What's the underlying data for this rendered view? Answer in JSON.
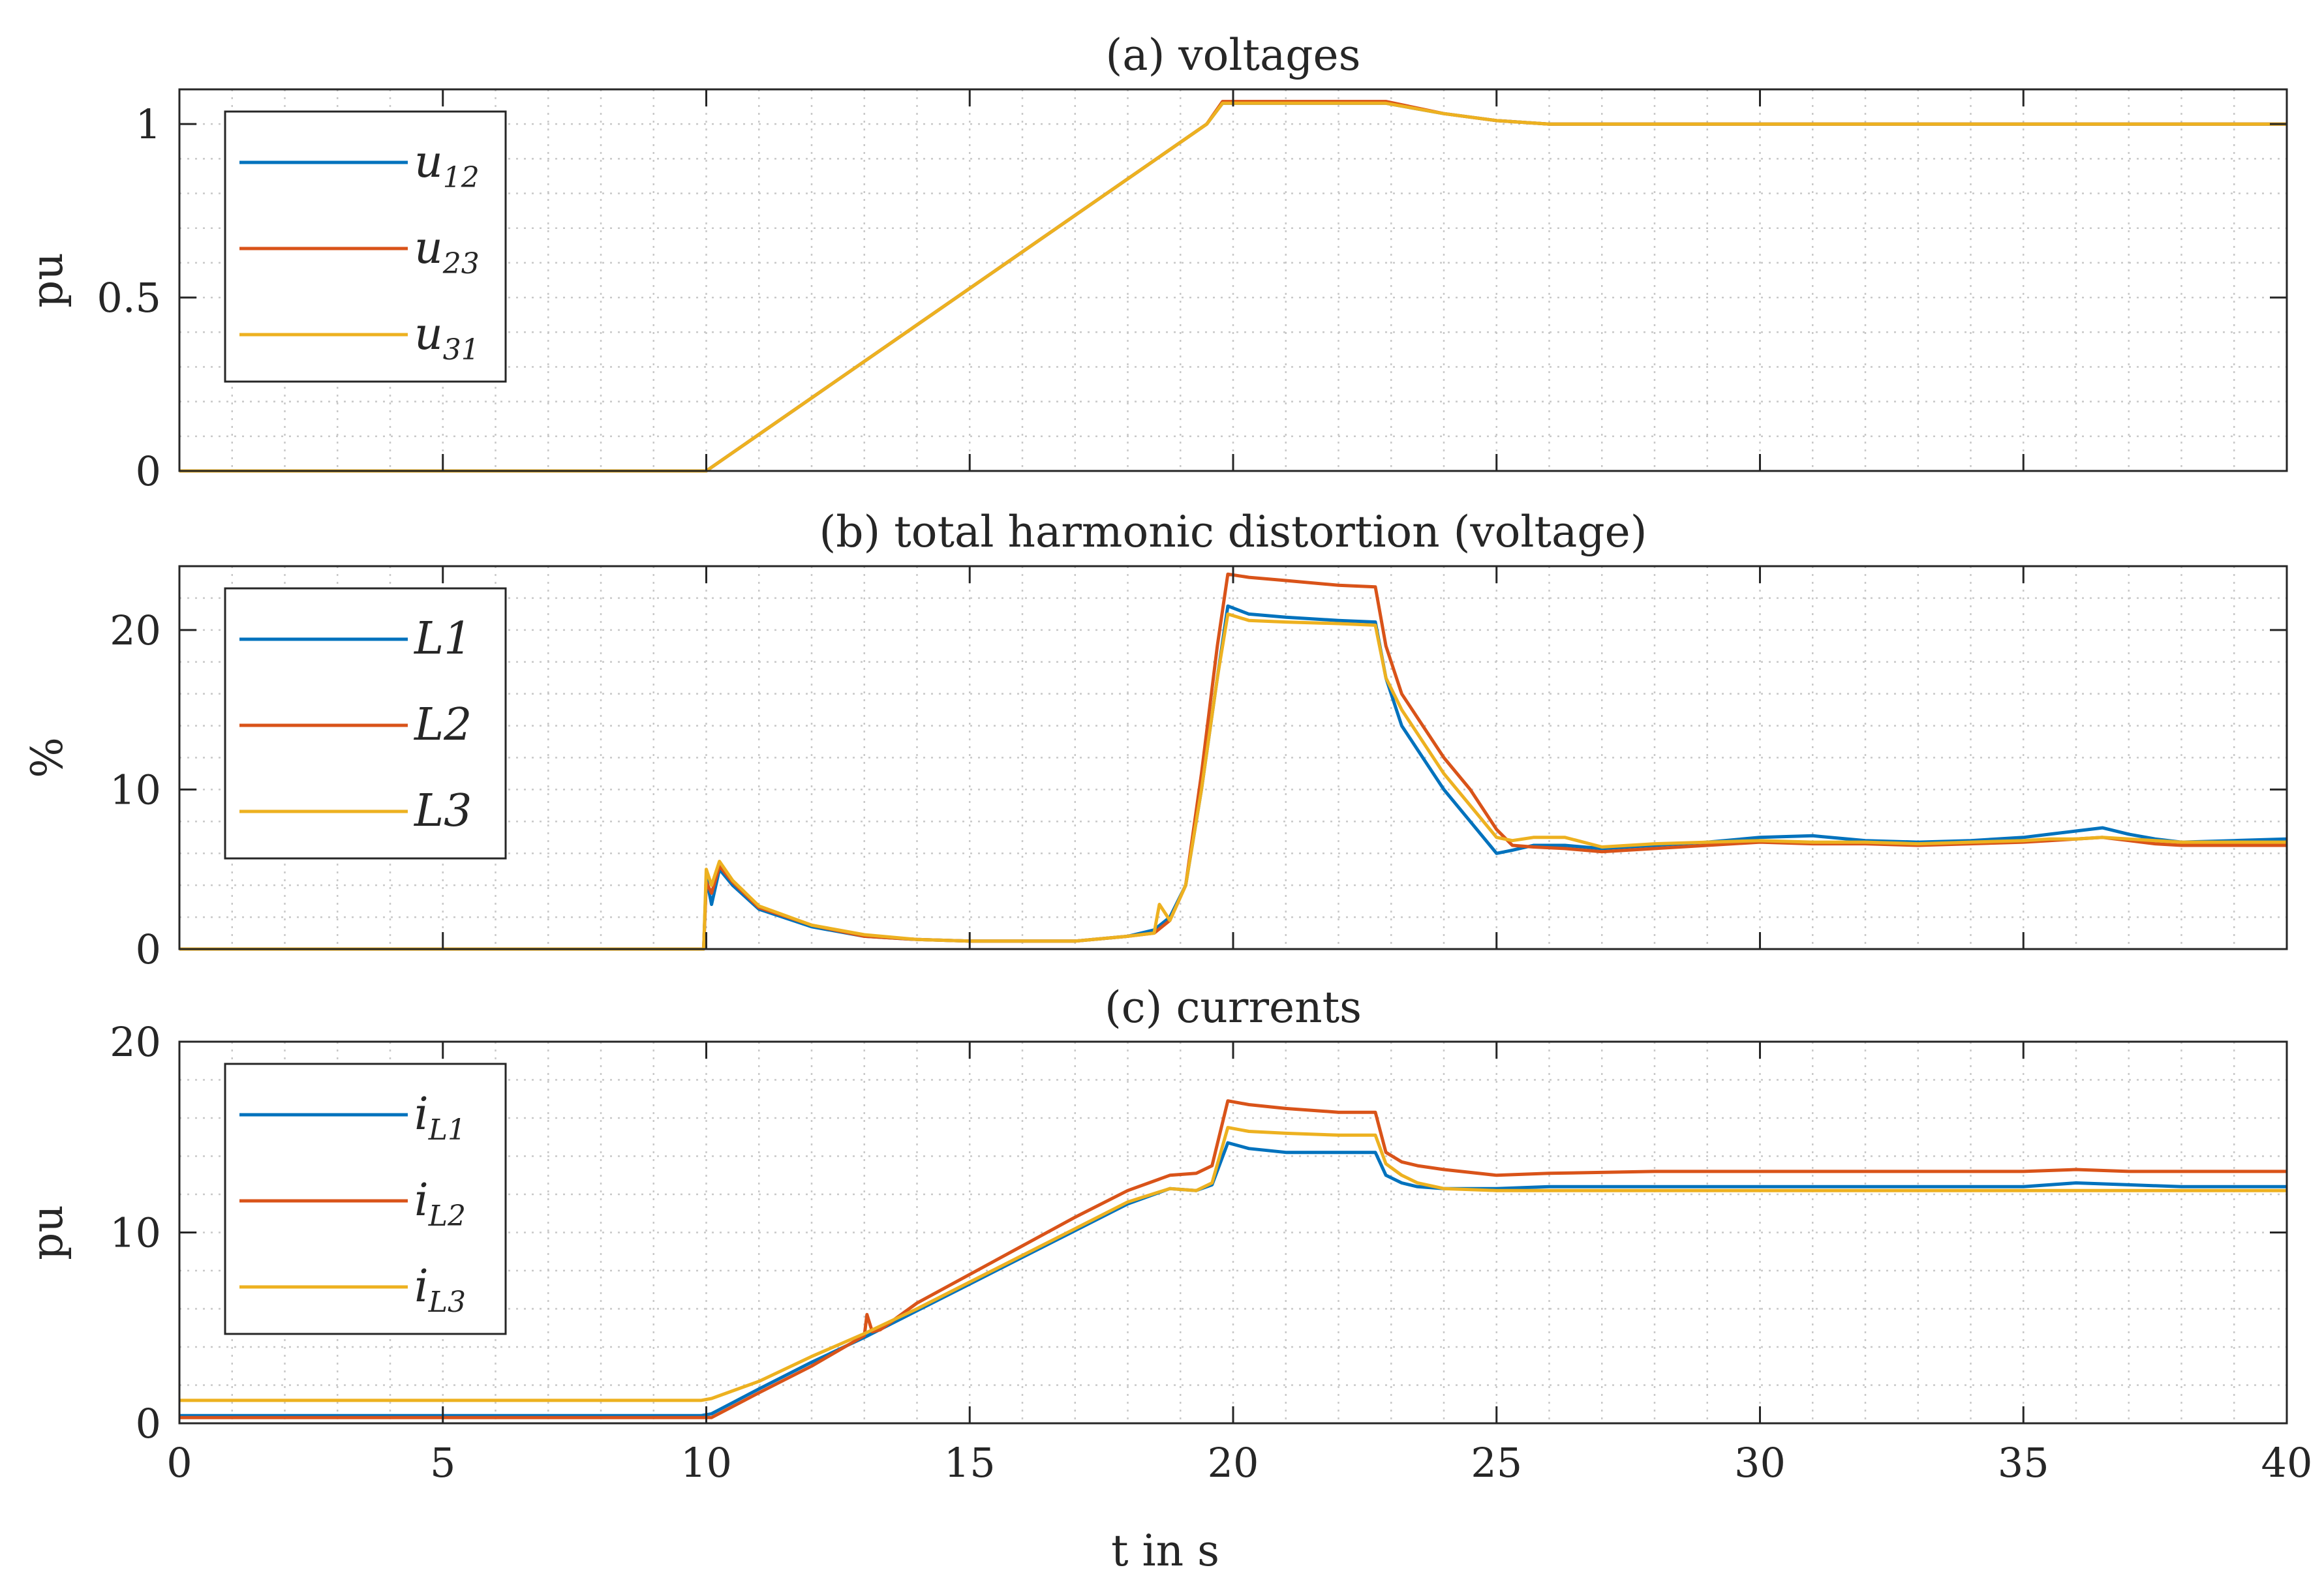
{
  "colors": {
    "blue": "#0072BD",
    "red": "#D95319",
    "yellow": "#EDB120",
    "axis": "#262626",
    "grid": "#c8c8c8"
  },
  "xlabel": "t in s",
  "xticks": [
    0,
    5,
    10,
    15,
    20,
    25,
    30,
    35,
    40
  ],
  "xlim": [
    0,
    40
  ],
  "chart_data": [
    {
      "type": "line",
      "title": "(a) voltages",
      "ylabel": "pu",
      "ylim": [
        0,
        1.1
      ],
      "yticks": [
        0,
        0.5,
        1
      ],
      "ytick_labels": [
        "0",
        "0.5",
        "1"
      ],
      "legend": {
        "placement": "top-left"
      },
      "series": [
        {
          "name": "u12",
          "base": "u",
          "sub": "12",
          "color": "blue",
          "x": [
            0,
            10,
            19.5,
            19.8,
            22.7,
            22.9,
            24,
            25,
            26,
            30,
            40
          ],
          "y": [
            0,
            0,
            1.0,
            1.06,
            1.06,
            1.06,
            1.03,
            1.01,
            1.0,
            1.0,
            1.0
          ]
        },
        {
          "name": "u23",
          "base": "u",
          "sub": "23",
          "color": "red",
          "x": [
            0,
            10,
            19.5,
            19.8,
            22.7,
            22.9,
            24,
            25,
            26,
            30,
            40
          ],
          "y": [
            0,
            0,
            1.0,
            1.065,
            1.065,
            1.065,
            1.03,
            1.01,
            1.0,
            1.0,
            1.0
          ]
        },
        {
          "name": "u31",
          "base": "u",
          "sub": "31",
          "color": "yellow",
          "x": [
            0,
            10,
            19.5,
            19.8,
            22.7,
            22.9,
            24,
            25,
            26,
            30,
            40
          ],
          "y": [
            0,
            0,
            1.0,
            1.06,
            1.06,
            1.06,
            1.03,
            1.01,
            1.0,
            1.0,
            1.0
          ]
        }
      ]
    },
    {
      "type": "line",
      "title": "(b) total harmonic distortion (voltage)",
      "ylabel": "%",
      "ylim": [
        0,
        24
      ],
      "yticks": [
        0,
        10,
        20
      ],
      "ytick_labels": [
        "0",
        "10",
        "20"
      ],
      "legend": {
        "placement": "top-left"
      },
      "series": [
        {
          "name": "L1",
          "base": "L1",
          "sub": "",
          "color": "blue",
          "x": [
            0,
            9.95,
            10.0,
            10.1,
            10.25,
            10.5,
            11,
            12,
            13,
            14,
            15,
            16,
            17,
            18,
            18.5,
            18.8,
            19.1,
            19.4,
            19.7,
            19.9,
            20.3,
            21,
            22,
            22.7,
            22.9,
            23.2,
            23.6,
            24,
            24.5,
            25,
            25.3,
            25.7,
            26.3,
            27,
            28,
            29,
            30,
            31,
            32,
            33,
            34,
            35,
            35.5,
            36,
            36.5,
            37,
            37.5,
            38,
            39,
            40
          ],
          "y": [
            0,
            0,
            4.5,
            2.8,
            5.0,
            4.0,
            2.5,
            1.4,
            0.8,
            0.6,
            0.5,
            0.5,
            0.5,
            0.8,
            1.2,
            2.0,
            4.0,
            10.0,
            17.0,
            21.5,
            21.0,
            20.8,
            20.6,
            20.5,
            17.0,
            14.0,
            12.0,
            10.0,
            8.0,
            6.0,
            6.2,
            6.5,
            6.5,
            6.3,
            6.5,
            6.7,
            7.0,
            7.1,
            6.8,
            6.7,
            6.8,
            7.0,
            7.2,
            7.4,
            7.6,
            7.2,
            6.9,
            6.7,
            6.8,
            6.9
          ]
        },
        {
          "name": "L2",
          "base": "L2",
          "sub": "",
          "color": "red",
          "x": [
            0,
            9.95,
            10.0,
            10.1,
            10.25,
            10.5,
            11,
            12,
            13,
            14,
            15,
            16,
            17,
            18,
            18.5,
            18.8,
            19.1,
            19.4,
            19.7,
            19.9,
            20.3,
            21,
            22,
            22.7,
            22.9,
            23.2,
            23.6,
            24,
            24.5,
            25,
            25.3,
            25.7,
            26.3,
            27,
            28,
            29,
            30,
            31,
            32,
            33,
            34,
            35,
            35.5,
            36,
            36.5,
            37,
            37.5,
            38,
            39,
            40
          ],
          "y": [
            0,
            0,
            4.2,
            3.5,
            5.2,
            4.2,
            2.6,
            1.5,
            0.8,
            0.6,
            0.5,
            0.5,
            0.5,
            0.8,
            1.0,
            1.8,
            4.0,
            11.0,
            19.0,
            23.5,
            23.3,
            23.1,
            22.8,
            22.7,
            19.0,
            16.0,
            14.0,
            12.0,
            10.0,
            7.5,
            6.5,
            6.4,
            6.3,
            6.1,
            6.3,
            6.5,
            6.7,
            6.6,
            6.6,
            6.5,
            6.6,
            6.7,
            6.8,
            6.9,
            7.0,
            6.8,
            6.6,
            6.5,
            6.5,
            6.5
          ]
        },
        {
          "name": "L3",
          "base": "L3",
          "sub": "",
          "color": "yellow",
          "x": [
            0,
            9.95,
            10.0,
            10.1,
            10.25,
            10.5,
            11,
            12,
            13,
            14,
            15,
            16,
            17,
            18,
            18.5,
            18.6,
            18.8,
            19.1,
            19.4,
            19.7,
            19.9,
            20.3,
            21,
            22,
            22.7,
            22.9,
            23.2,
            23.6,
            24,
            24.5,
            25,
            25.3,
            25.7,
            26.3,
            27,
            28,
            29,
            30,
            31,
            32,
            33,
            34,
            35,
            35.5,
            36,
            36.5,
            37,
            37.5,
            38,
            39,
            40
          ],
          "y": [
            0,
            0,
            5.0,
            4.0,
            5.5,
            4.3,
            2.7,
            1.5,
            0.9,
            0.6,
            0.5,
            0.5,
            0.5,
            0.8,
            1.0,
            2.8,
            1.8,
            4.0,
            10.0,
            17.0,
            21.0,
            20.6,
            20.5,
            20.4,
            20.3,
            17.0,
            15.0,
            13.0,
            11.0,
            9.0,
            7.0,
            6.8,
            7.0,
            7.0,
            6.4,
            6.6,
            6.7,
            6.8,
            6.7,
            6.7,
            6.6,
            6.7,
            6.8,
            6.9,
            6.9,
            7.0,
            6.9,
            6.8,
            6.7,
            6.7,
            6.7
          ]
        }
      ]
    },
    {
      "type": "line",
      "title": "(c) currents",
      "ylabel": "pu",
      "ylim": [
        0,
        20
      ],
      "yticks": [
        0,
        10,
        20
      ],
      "ytick_labels": [
        "0",
        "10",
        "20"
      ],
      "legend": {
        "placement": "top-left"
      },
      "series": [
        {
          "name": "iL1",
          "base": "i",
          "sub": "L1",
          "color": "blue",
          "x": [
            0,
            5,
            9.9,
            10.1,
            11,
            12,
            13,
            14,
            15,
            16,
            17,
            18,
            18.8,
            19.3,
            19.6,
            19.9,
            20.3,
            21,
            22,
            22.7,
            22.9,
            23.2,
            23.5,
            24,
            25,
            26,
            28,
            30,
            33,
            35,
            36,
            37,
            38,
            40
          ],
          "y": [
            0.4,
            0.4,
            0.4,
            0.5,
            1.8,
            3.2,
            4.5,
            5.9,
            7.3,
            8.7,
            10.1,
            11.5,
            12.3,
            12.2,
            12.5,
            14.7,
            14.4,
            14.2,
            14.2,
            14.2,
            13.0,
            12.6,
            12.4,
            12.3,
            12.3,
            12.4,
            12.4,
            12.4,
            12.4,
            12.4,
            12.6,
            12.5,
            12.4,
            12.4
          ]
        },
        {
          "name": "iL2",
          "base": "i",
          "sub": "L2",
          "color": "red",
          "x": [
            0,
            5,
            9.9,
            10.1,
            11,
            12,
            13,
            13.05,
            13.15,
            13.3,
            14,
            15,
            16,
            17,
            18,
            18.8,
            19.3,
            19.6,
            19.9,
            20.3,
            21,
            22,
            22.7,
            22.9,
            23.2,
            23.5,
            24,
            25,
            26,
            28,
            30,
            33,
            35,
            36,
            37,
            38,
            40
          ],
          "y": [
            0.3,
            0.3,
            0.3,
            0.3,
            1.6,
            3.0,
            4.6,
            5.7,
            4.8,
            4.9,
            6.3,
            7.8,
            9.3,
            10.8,
            12.2,
            13.0,
            13.1,
            13.5,
            16.9,
            16.7,
            16.5,
            16.3,
            16.3,
            14.2,
            13.7,
            13.5,
            13.3,
            13.0,
            13.1,
            13.2,
            13.2,
            13.2,
            13.2,
            13.3,
            13.2,
            13.2,
            13.2
          ]
        },
        {
          "name": "iL3",
          "base": "i",
          "sub": "L3",
          "color": "yellow",
          "x": [
            0,
            5,
            9.9,
            10.1,
            11,
            12,
            13,
            14,
            15,
            16,
            17,
            18,
            18.8,
            19.3,
            19.6,
            19.9,
            20.3,
            21,
            22,
            22.7,
            22.9,
            23.2,
            23.5,
            24,
            25,
            26,
            28,
            30,
            33,
            35,
            36,
            37,
            38,
            40
          ],
          "y": [
            1.2,
            1.2,
            1.2,
            1.3,
            2.2,
            3.5,
            4.7,
            6.0,
            7.4,
            8.8,
            10.2,
            11.6,
            12.3,
            12.2,
            12.6,
            15.5,
            15.3,
            15.2,
            15.1,
            15.1,
            13.6,
            13.0,
            12.6,
            12.3,
            12.2,
            12.2,
            12.2,
            12.2,
            12.2,
            12.2,
            12.2,
            12.2,
            12.2,
            12.2
          ]
        }
      ]
    }
  ]
}
